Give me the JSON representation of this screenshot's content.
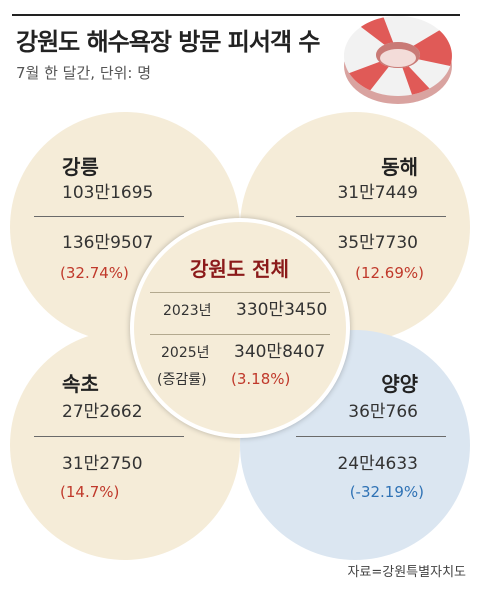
{
  "header": {
    "title": "강원도 해수욕장 방문 피서객 수",
    "subtitle": "7월 한 달간, 단위: 명"
  },
  "colors": {
    "circle_beige": "#f5ecd8",
    "circle_blue": "#dbe6f1",
    "title_red": "#8b1a1a",
    "increase_red": "#c0392b",
    "decrease_blue": "#2f72b5"
  },
  "chart_data": {
    "type": "table",
    "title": "강원도 해수욕장 방문 피서객 수",
    "subtitle": "7월 한 달간, 단위: 명",
    "regions": [
      {
        "name": "강릉",
        "y2023": "103만1695",
        "y2025": "136만9507",
        "rate": "(32.74%)",
        "visitors_2023": 1031695,
        "visitors_2025": 1369507,
        "change_pct": 32.74
      },
      {
        "name": "동해",
        "y2023": "31만7449",
        "y2025": "35만7730",
        "rate": "(12.69%)",
        "visitors_2023": 317449,
        "visitors_2025": 357730,
        "change_pct": 12.69
      },
      {
        "name": "속초",
        "y2023": "27만2662",
        "y2025": "31만2750",
        "rate": "(14.7%)",
        "visitors_2023": 272662,
        "visitors_2025": 312750,
        "change_pct": 14.7
      },
      {
        "name": "양양",
        "y2023": "36만766",
        "y2025": "24만4633",
        "rate": "(-32.19%)",
        "visitors_2023": 360766,
        "visitors_2025": 244633,
        "change_pct": -32.19
      }
    ],
    "total": {
      "name": "강원도 전체",
      "year_a_label": "2023년",
      "year_a_value": "330만3450",
      "year_b_label": "2025년",
      "year_b_value": "340만8407",
      "rate_label": "(증감률)",
      "rate": "(3.18%)",
      "visitors_2023": 3303450,
      "visitors_2025": 3408407,
      "change_pct": 3.18
    },
    "source": "자료=강원특별자치도"
  }
}
